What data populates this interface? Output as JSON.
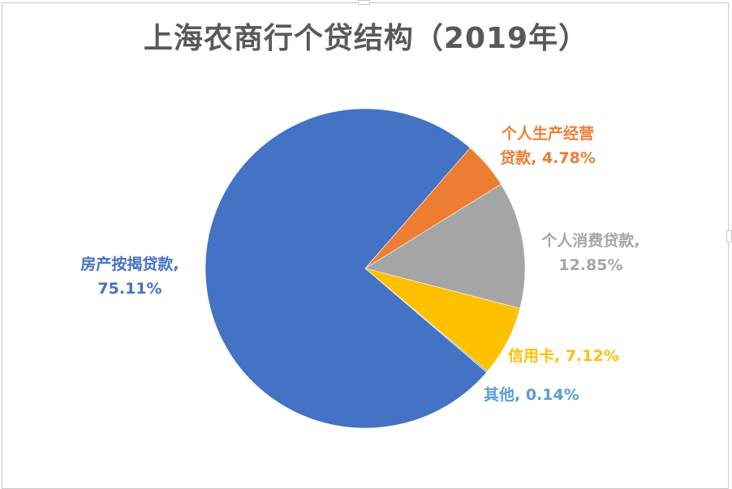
{
  "chart_data": {
    "type": "pie",
    "title": "上海农商行个贷结构（2019年）",
    "start_angle_deg": 41,
    "slices": [
      {
        "name": "个人生产经营贷款",
        "value": 4.78,
        "color": "#ED7D31",
        "label_lines": [
          "个人生产经营",
          "贷款, 4.78%"
        ]
      },
      {
        "name": "个人消费贷款",
        "value": 12.85,
        "color": "#A5A5A5",
        "label_lines": [
          "个人消费贷款,",
          "12.85%"
        ]
      },
      {
        "name": "信用卡",
        "value": 7.12,
        "color": "#FFC000",
        "label_lines": [
          "信用卡, 7.12%"
        ]
      },
      {
        "name": "其他",
        "value": 0.14,
        "color": "#5B9BD5",
        "label_lines": [
          "其他, 0.14%"
        ]
      },
      {
        "name": "房产按揭贷款",
        "value": 75.11,
        "color": "#4472C4",
        "label_lines": [
          "房产按揭贷款,",
          "75.11%"
        ]
      }
    ],
    "legend": "none",
    "data_labels": "category name, percentage"
  }
}
